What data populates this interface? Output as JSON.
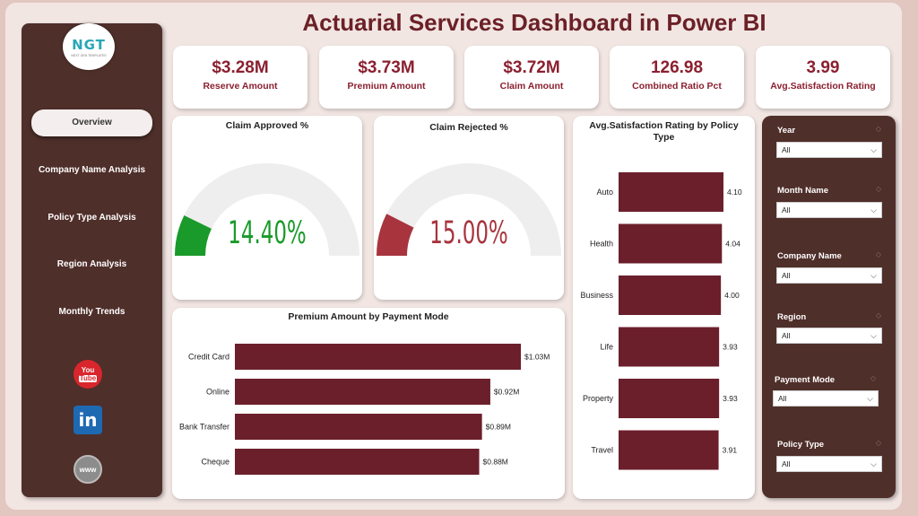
{
  "title": "Actuarial Services Dashboard in Power BI",
  "logo": {
    "text": "NGT",
    "subtext": "NEXT GEN TEMPLATES"
  },
  "nav": [
    {
      "label": "Overview",
      "active": true
    },
    {
      "label": "Company Name Analysis",
      "active": false
    },
    {
      "label": "Policy Type Analysis",
      "active": false
    },
    {
      "label": "Region Analysis",
      "active": false
    },
    {
      "label": "Monthly Trends",
      "active": false
    }
  ],
  "social": [
    {
      "icon": "youtube-icon",
      "text1": "You",
      "text2": "Tube"
    },
    {
      "icon": "linkedin-icon",
      "text": "in"
    },
    {
      "icon": "globe-icon",
      "text": "www"
    }
  ],
  "kpis": [
    {
      "value": "$3.28M",
      "label": "Reserve Amount"
    },
    {
      "value": "$3.73M",
      "label": "Premium Amount"
    },
    {
      "value": "$3.72M",
      "label": "Claim Amount"
    },
    {
      "value": "126.98",
      "label": "Combined Ratio Pct"
    },
    {
      "value": "3.99",
      "label": "Avg.Satisfaction Rating"
    }
  ],
  "colors": {
    "accent": "#8b2030",
    "bar": "#6b1f2b",
    "gauge_approved": "#1a9a2a",
    "gauge_rejected": "#a8343e",
    "gauge_track": "#eeeeee",
    "sidebar": "#4f2f2a"
  },
  "chart_data": [
    {
      "type": "gauge",
      "title": "Claim Approved %",
      "value": 14.4,
      "display": "14.40%",
      "max": 100
    },
    {
      "type": "gauge",
      "title": "Claim Rejected %",
      "value": 15.0,
      "display": "15.00%",
      "max": 100
    },
    {
      "type": "bar",
      "orientation": "horizontal",
      "title": "Premium Amount by Payment Mode",
      "categories": [
        "Credit Card",
        "Online",
        "Bank Transfer",
        "Cheque"
      ],
      "values": [
        1.03,
        0.92,
        0.89,
        0.88
      ],
      "value_labels": [
        "$1.03M",
        "$0.92M",
        "$0.89M",
        "$0.88M"
      ],
      "xlim": [
        0,
        1.03
      ]
    },
    {
      "type": "bar",
      "orientation": "horizontal",
      "title": "Avg.Satisfaction Rating by Policy Type",
      "categories": [
        "Auto",
        "Health",
        "Business",
        "Life",
        "Property",
        "Travel"
      ],
      "values": [
        4.1,
        4.04,
        4.0,
        3.93,
        3.93,
        3.91
      ],
      "value_labels": [
        "4.10",
        "4.04",
        "4.00",
        "3.93",
        "3.93",
        "3.91"
      ],
      "xlim": [
        0,
        4.1
      ]
    }
  ],
  "filters": [
    {
      "label": "Year",
      "value": "All"
    },
    {
      "label": "Month Name",
      "value": "All"
    },
    {
      "label": "Company Name",
      "value": "All"
    },
    {
      "label": "Region",
      "value": "All"
    },
    {
      "label": "Payment Mode",
      "value": "All"
    },
    {
      "label": "Policy Type",
      "value": "All"
    }
  ]
}
